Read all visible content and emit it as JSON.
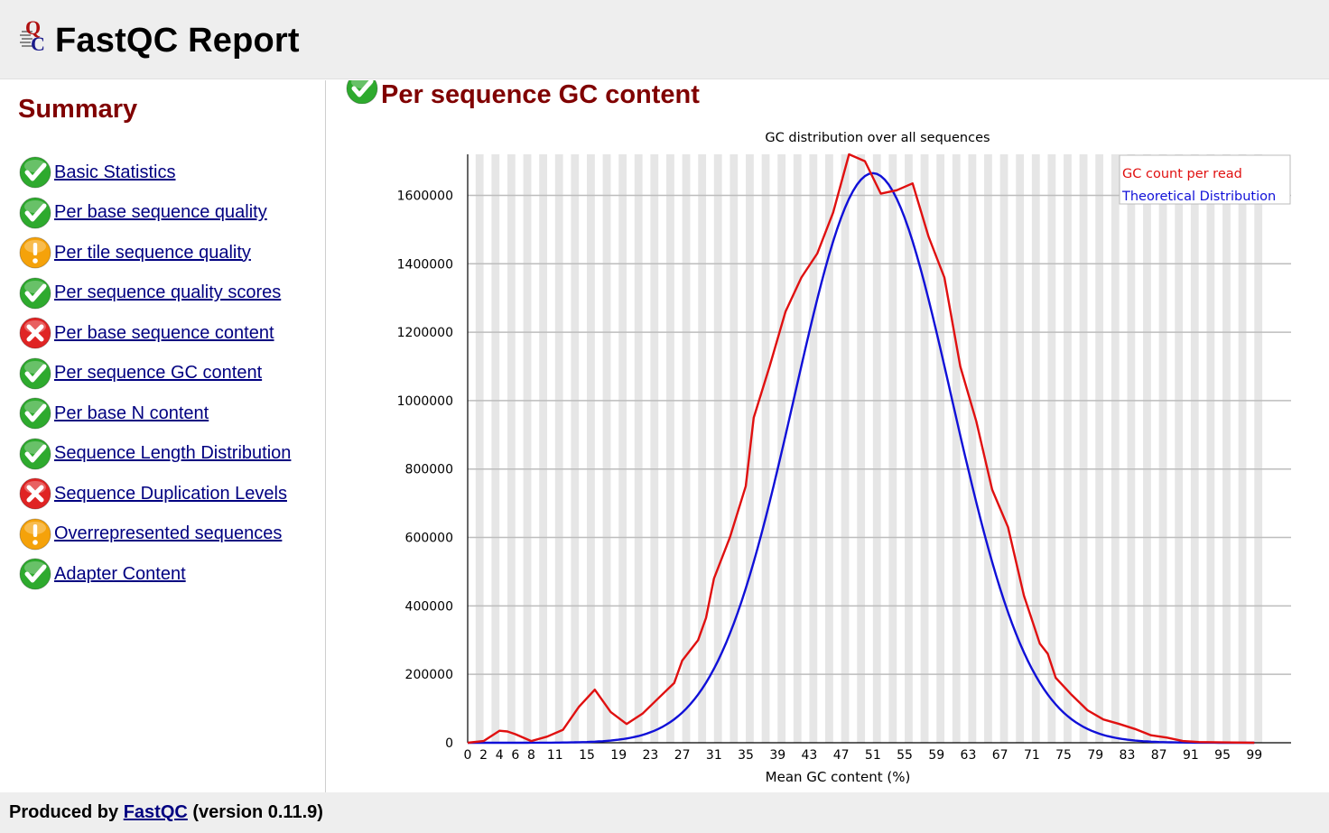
{
  "header": {
    "title": "FastQC Report"
  },
  "sidebar": {
    "title": "Summary",
    "modules": [
      {
        "label": "Basic Statistics",
        "status": "pass"
      },
      {
        "label": "Per base sequence quality",
        "status": "pass"
      },
      {
        "label": "Per tile sequence quality",
        "status": "warn"
      },
      {
        "label": "Per sequence quality scores",
        "status": "pass"
      },
      {
        "label": "Per base sequence content",
        "status": "fail"
      },
      {
        "label": "Per sequence GC content",
        "status": "pass"
      },
      {
        "label": "Per base N content",
        "status": "pass"
      },
      {
        "label": "Sequence Length Distribution",
        "status": "pass"
      },
      {
        "label": "Sequence Duplication Levels",
        "status": "fail"
      },
      {
        "label": "Overrepresented sequences",
        "status": "warn"
      },
      {
        "label": "Adapter Content",
        "status": "pass"
      }
    ]
  },
  "main": {
    "section_title": "Per sequence GC content",
    "section_status": "pass"
  },
  "colors": {
    "pass": "#2eaa2e",
    "warn": "#f5a20a",
    "fail": "#e02424",
    "heading": "#800000",
    "link": "#000080",
    "series_gc": "#e01010",
    "series_theoretical": "#1010d8",
    "band": "#e6e6e6"
  },
  "icons": {
    "pass": "check-icon",
    "warn": "exclamation-icon",
    "fail": "cross-icon"
  },
  "chart_data": {
    "type": "line",
    "title": "GC distribution over all sequences",
    "xlabel": "Mean GC content (%)",
    "ylabel": "",
    "xlim": [
      0,
      100
    ],
    "ylim": [
      0,
      1720000
    ],
    "y_ticks": [
      0,
      200000,
      400000,
      600000,
      800000,
      1000000,
      1200000,
      1400000,
      1600000
    ],
    "x_tick_labels": [
      "0",
      "2",
      "4",
      "6",
      "8",
      "11",
      "15",
      "19",
      "23",
      "27",
      "31",
      "35",
      "39",
      "43",
      "47",
      "51",
      "55",
      "59",
      "63",
      "67",
      "71",
      "75",
      "79",
      "83",
      "87",
      "91",
      "95",
      "99"
    ],
    "grid": true,
    "legend": "top-right",
    "series": [
      {
        "name": "GC count per read",
        "points": [
          [
            0,
            0
          ],
          [
            2,
            5000
          ],
          [
            4,
            35000
          ],
          [
            5,
            33000
          ],
          [
            6,
            25000
          ],
          [
            8,
            5000
          ],
          [
            10,
            18000
          ],
          [
            12,
            38000
          ],
          [
            14,
            105000
          ],
          [
            16,
            155000
          ],
          [
            18,
            90000
          ],
          [
            20,
            55000
          ],
          [
            22,
            85000
          ],
          [
            24,
            130000
          ],
          [
            26,
            175000
          ],
          [
            27,
            240000
          ],
          [
            29,
            300000
          ],
          [
            30,
            365000
          ],
          [
            31,
            480000
          ],
          [
            33,
            600000
          ],
          [
            35,
            750000
          ],
          [
            36,
            950000
          ],
          [
            38,
            1100000
          ],
          [
            40,
            1260000
          ],
          [
            42,
            1360000
          ],
          [
            44,
            1430000
          ],
          [
            46,
            1550000
          ],
          [
            48,
            1720000
          ],
          [
            50,
            1700000
          ],
          [
            52,
            1605000
          ],
          [
            54,
            1615000
          ],
          [
            56,
            1635000
          ],
          [
            58,
            1480000
          ],
          [
            60,
            1360000
          ],
          [
            62,
            1100000
          ],
          [
            64,
            940000
          ],
          [
            66,
            740000
          ],
          [
            68,
            630000
          ],
          [
            70,
            430000
          ],
          [
            72,
            290000
          ],
          [
            73,
            260000
          ],
          [
            74,
            190000
          ],
          [
            76,
            140000
          ],
          [
            78,
            95000
          ],
          [
            80,
            68000
          ],
          [
            82,
            55000
          ],
          [
            84,
            40000
          ],
          [
            86,
            22000
          ],
          [
            88,
            15000
          ],
          [
            90,
            5000
          ],
          [
            92,
            2000
          ],
          [
            95,
            1000
          ],
          [
            99,
            0
          ]
        ]
      },
      {
        "name": "Theoretical Distribution",
        "mean": 51,
        "sd": 9.9,
        "peak": 1665000
      }
    ]
  },
  "footer": {
    "prefix": "Produced by",
    "link": "FastQC",
    "suffix": "(version 0.11.9)"
  }
}
